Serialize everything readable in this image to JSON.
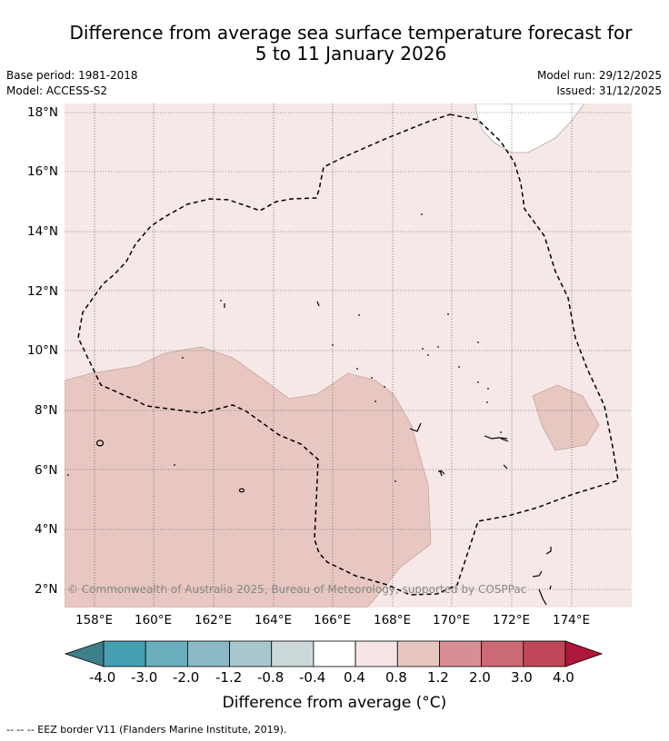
{
  "title": {
    "line1": "Difference from average sea surface temperature forecast for",
    "line2": "5 to 11 January 2026"
  },
  "meta": {
    "base_period": "Base period: 1981-2018",
    "model": "Model: ACCESS-S2",
    "model_run": "Model run: 29/12/2025",
    "issued": "Issued: 31/12/2025"
  },
  "axes": {
    "x_ticks": [
      "158°E",
      "160°E",
      "162°E",
      "164°E",
      "166°E",
      "168°E",
      "170°E",
      "172°E",
      "174°E"
    ],
    "y_ticks": [
      "18°N",
      "16°N",
      "14°N",
      "12°N",
      "10°N",
      "8°N",
      "6°N",
      "4°N",
      "2°N"
    ]
  },
  "map": {
    "lon_range": [
      157,
      176
    ],
    "lat_range": [
      1.4,
      18.3
    ],
    "region_category": "0.4 to 0.8",
    "highlight_category": "0.8 to 1.2",
    "land_color": "#ffffff",
    "copyright": "© Commonwealth of Australia 2025, Bureau of Meteorology, supported by COSPPac"
  },
  "colorbar": {
    "labels": [
      "-4.0",
      "-3.0",
      "-2.0",
      "-1.2",
      "-0.8",
      "-0.4",
      "0.4",
      "0.8",
      "1.2",
      "2.0",
      "3.0",
      "4.0"
    ],
    "low_extend_color": "#3e7f8c",
    "high_extend_color": "#b0183b",
    "colors": [
      "#45a0b2",
      "#6aaebe",
      "#8ab9c5",
      "#a8c7cc",
      "#cdd8da",
      "#ffffff",
      "#f5e6e5",
      "#e7c6c2",
      "#d98e95",
      "#cc6a74",
      "#bf4757"
    ],
    "label": "Difference from average (°C)"
  },
  "footer": {
    "legend": "--  --  -- EEZ border V11 (Flanders Marine Institute, 2019)."
  }
}
